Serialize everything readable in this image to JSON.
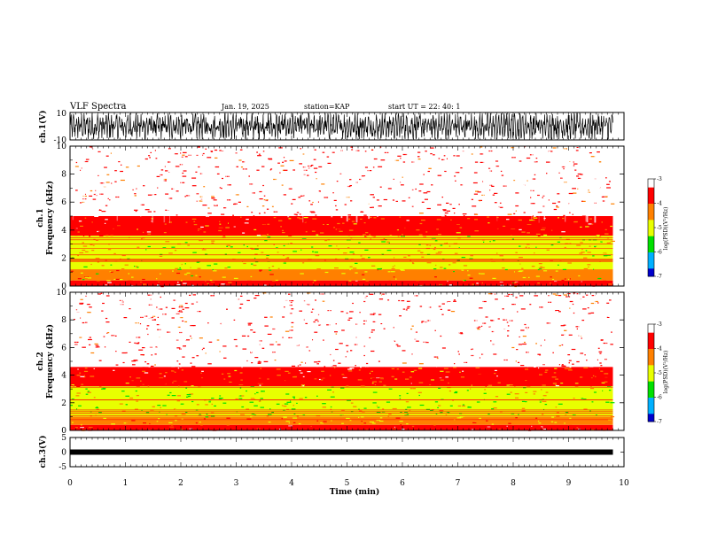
{
  "header": {
    "title": "VLF Spectra",
    "date": "Jan. 19, 2025",
    "station": "station=KAP",
    "start": "start UT =  22: 40: 1"
  },
  "colors": {
    "spectrum": [
      "#0000cc",
      "#00b0ff",
      "#00e000",
      "#e8ff00",
      "#ff8000",
      "#ff0000",
      "#ffffff"
    ]
  },
  "chart_data": [
    {
      "type": "line",
      "panel": "ch1-waveform",
      "ylabel": "ch.1(V)",
      "ylim": [
        -10,
        10
      ],
      "ytick_labels": [
        "10",
        "-10"
      ],
      "xlim": [
        0,
        10
      ],
      "description_values": {
        "amplitude_range": [
          -10,
          10
        ]
      }
    },
    {
      "type": "heatmap",
      "panel": "ch1-spectrogram",
      "ylabel": "ch.1\nFrequency (kHz)",
      "ylabel_line1": "ch.1",
      "ylabel_line2": "Frequency (kHz)",
      "ylim": [
        0,
        10
      ],
      "ytick_labels": [
        "0",
        "2",
        "4",
        "6",
        "8",
        "10"
      ],
      "xlim": [
        0,
        9.8
      ],
      "colorbar": {
        "label": "log(PSD)(V²/Hz)",
        "range": [
          -7,
          -3
        ],
        "tick_labels": [
          "-3",
          "-4",
          "-5",
          "-6",
          "-7"
        ]
      },
      "bands": [
        {
          "f_range": [
            0,
            0.4
          ],
          "level": -3.6
        },
        {
          "f_range": [
            0.4,
            1.2
          ],
          "level": -4.6
        },
        {
          "f_range": [
            1.2,
            3.6
          ],
          "level": -4.9
        },
        {
          "f_range": [
            3.6,
            5.0
          ],
          "level": -4.0
        },
        {
          "f_range": [
            5.0,
            10.0
          ],
          "level": -3.3
        }
      ]
    },
    {
      "type": "heatmap",
      "panel": "ch2-spectrogram",
      "ylabel_line1": "ch.2",
      "ylabel_line2": "Frequency (kHz)",
      "ylim": [
        0,
        10
      ],
      "ytick_labels": [
        "0",
        "2",
        "4",
        "6",
        "8",
        "10"
      ],
      "xlim": [
        0,
        9.8
      ],
      "colorbar": {
        "label": "log(PSD)(V²/Hz)",
        "range": [
          -7,
          -3
        ],
        "tick_labels": [
          "-3",
          "-4",
          "-5",
          "-6",
          "-7"
        ]
      },
      "bands": [
        {
          "f_range": [
            0,
            0.4
          ],
          "level": -3.6
        },
        {
          "f_range": [
            0.4,
            1.0
          ],
          "level": -4.5
        },
        {
          "f_range": [
            1.0,
            3.2
          ],
          "level": -5.1
        },
        {
          "f_range": [
            3.2,
            4.6
          ],
          "level": -4.0
        },
        {
          "f_range": [
            4.6,
            10.0
          ],
          "level": -3.3
        }
      ]
    },
    {
      "type": "line",
      "panel": "ch3-waveform",
      "ylabel": "ch.3(V)",
      "ylim": [
        -5,
        5
      ],
      "ytick_labels": [
        "5",
        "0",
        "-5"
      ],
      "trace_value": 0.0,
      "xlim": [
        0,
        10
      ]
    }
  ],
  "xaxis": {
    "label": "Time (min)",
    "range": [
      0,
      10
    ],
    "tick_labels": [
      "0",
      "1",
      "2",
      "3",
      "4",
      "5",
      "6",
      "7",
      "8",
      "9",
      "10"
    ]
  }
}
